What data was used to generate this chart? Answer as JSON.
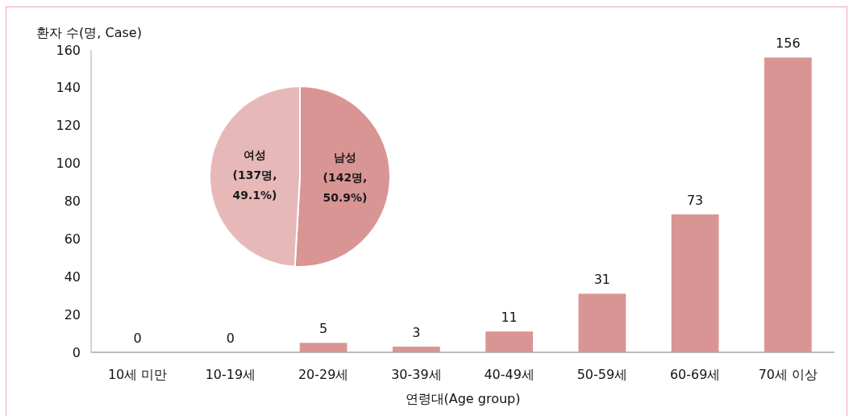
{
  "chart_data": [
    {
      "type": "bar",
      "ylabel": "환자 수(명, Case)",
      "xlabel": "연령대(Age group)",
      "categories": [
        "10세 미만",
        "10-19세",
        "20-29세",
        "30-39세",
        "40-49세",
        "50-59세",
        "60-69세",
        "70세 이상"
      ],
      "values": [
        0,
        0,
        5,
        3,
        11,
        31,
        73,
        156
      ],
      "color": "#d99594",
      "ylim": [
        0,
        160
      ],
      "yticks": [
        0,
        20,
        40,
        60,
        80,
        100,
        120,
        140,
        160
      ],
      "data_labels": true
    },
    {
      "type": "pie",
      "categories": [
        "남성",
        "여성"
      ],
      "values": [
        142,
        137
      ],
      "colors": [
        "#d99594",
        "#e6b9b8"
      ],
      "value_labels": [
        "(142명, 50.9%)",
        "(137명, 49.1%)"
      ]
    }
  ]
}
